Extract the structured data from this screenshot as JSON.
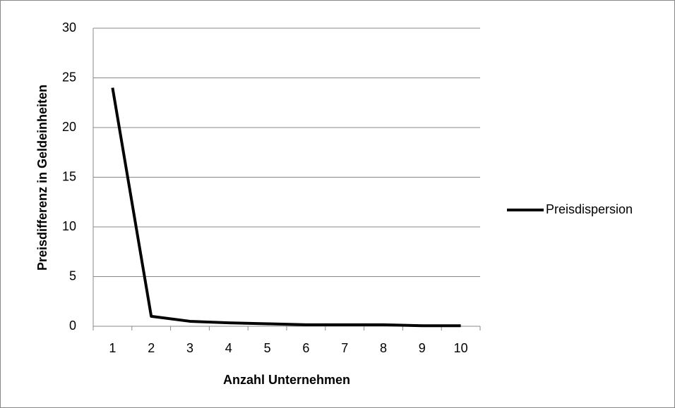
{
  "chart_data": {
    "type": "line",
    "x_label": "Anzahl Unternehmen",
    "y_label": "Preisdifferenz in Geldeinheiten",
    "categories": [
      1,
      2,
      3,
      4,
      5,
      6,
      7,
      8,
      9,
      10
    ],
    "series": [
      {
        "name": "Preisdispersion",
        "color": "#000000",
        "values": [
          24,
          1,
          0.5,
          0.35,
          0.25,
          0.15,
          0.15,
          0.15,
          0.05,
          0.05
        ]
      }
    ],
    "ylim": [
      0,
      30
    ],
    "yticks": [
      0,
      5,
      10,
      15,
      20,
      25,
      30
    ],
    "grid": true,
    "legend": "right"
  }
}
